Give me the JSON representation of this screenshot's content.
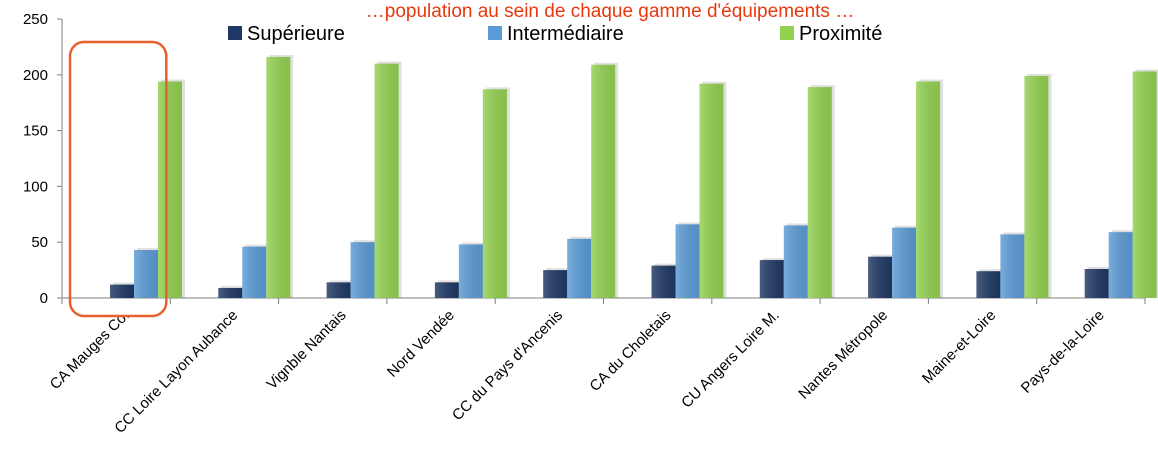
{
  "chart_data": {
    "type": "bar",
    "title": "…population au sein de chaque gamme d'équipements …",
    "title_color": "#e8380d",
    "categories": [
      "CA Mauges Co.",
      "CC Loire Layon Aubance",
      "Vignble Nantais",
      "Nord Vendée",
      "CC du Pays d'Ancenis",
      "CA du Choletais",
      "CU Angers Loire M.",
      "Nantes Métropole",
      "Maine-et-Loire",
      "Pays-de-la-Loire"
    ],
    "series": [
      {
        "name": "Supérieure",
        "color": "#1f3864",
        "values": [
          12,
          9,
          14,
          14,
          25,
          29,
          34,
          37,
          24,
          26
        ]
      },
      {
        "name": "Intermédiaire",
        "color": "#5b9bd5",
        "values": [
          43,
          46,
          50,
          48,
          53,
          66,
          65,
          63,
          57,
          59
        ]
      },
      {
        "name": "Proximité",
        "color": "#92d050",
        "values": [
          194,
          216,
          210,
          187,
          209,
          192,
          189,
          194,
          199,
          203
        ]
      }
    ],
    "ylim": [
      0,
      250
    ],
    "yticks": [
      0,
      50,
      100,
      150,
      200,
      250
    ],
    "xlabel": "",
    "ylabel": "",
    "grid": false,
    "legend_position": "top",
    "highlight": {
      "category": "CA Mauges Co.",
      "color": "#e8602c"
    }
  }
}
